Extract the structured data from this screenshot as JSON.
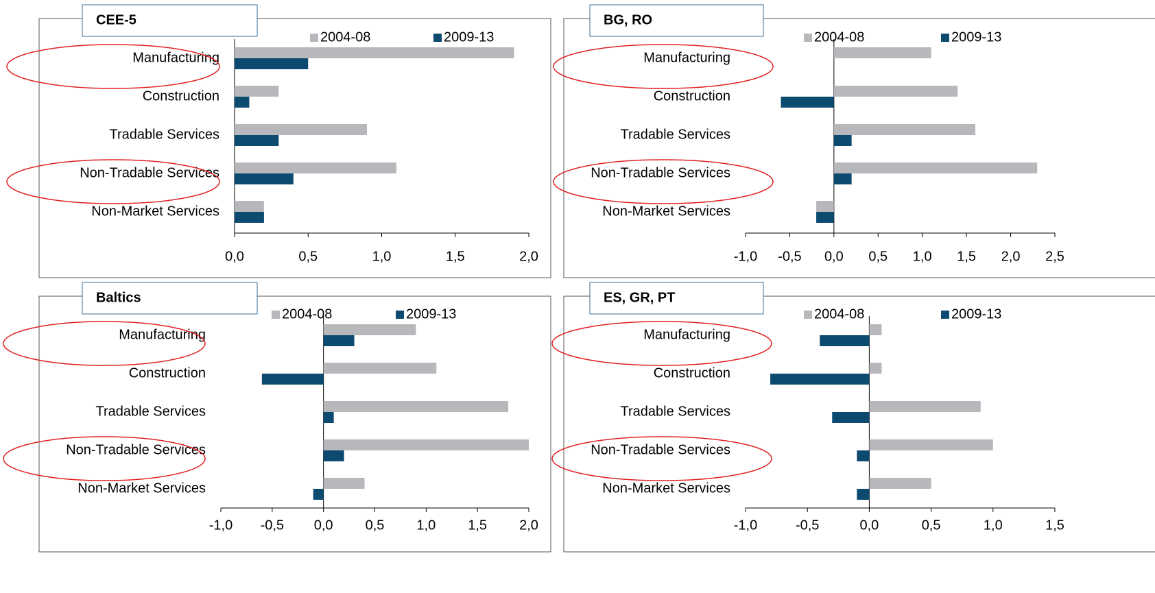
{
  "chart_data": [
    {
      "type": "bar",
      "orientation": "horizontal",
      "title": "CEE-5",
      "categories": [
        "Manufacturing",
        "Construction",
        "Tradable Services",
        "Non-Tradable Services",
        "Non-Market Services"
      ],
      "series": [
        {
          "name": "2004-08",
          "color": "#b7b8bc",
          "values": [
            1.9,
            0.3,
            0.9,
            1.1,
            0.2
          ]
        },
        {
          "name": "2009-13",
          "color": "#0d4a70",
          "values": [
            0.5,
            0.1,
            0.3,
            0.4,
            0.2
          ]
        }
      ],
      "xlim": [
        0,
        2
      ],
      "xticks": [
        {
          "value": 0,
          "label": "0,0"
        },
        {
          "value": 0.5,
          "label": "0,5"
        },
        {
          "value": 1,
          "label": "1,0"
        },
        {
          "value": 1.5,
          "label": "1,5"
        },
        {
          "value": 2,
          "label": "2,0"
        }
      ]
    },
    {
      "type": "bar",
      "orientation": "horizontal",
      "title": "BG, RO",
      "categories": [
        "Manufacturing",
        "Construction",
        "Tradable Services",
        "Non-Tradable Services",
        "Non-Market Services"
      ],
      "series": [
        {
          "name": "2004-08",
          "color": "#b7b8bc",
          "values": [
            1.1,
            1.4,
            1.6,
            2.3,
            -0.2
          ]
        },
        {
          "name": "2009-13",
          "color": "#0d4a70",
          "values": [
            0,
            -0.6,
            0.2,
            0.2,
            -0.2
          ]
        }
      ],
      "xlim": [
        -1,
        2.5
      ],
      "xticks": [
        {
          "value": -1,
          "label": "-1,0"
        },
        {
          "value": -0.5,
          "label": "-0,5"
        },
        {
          "value": 0,
          "label": "0,0"
        },
        {
          "value": 0.5,
          "label": "0,5"
        },
        {
          "value": 1,
          "label": "1,0"
        },
        {
          "value": 1.5,
          "label": "1,5"
        },
        {
          "value": 2,
          "label": "2,0"
        },
        {
          "value": 2.5,
          "label": "2,5"
        }
      ]
    },
    {
      "type": "bar",
      "orientation": "horizontal",
      "title": "Baltics",
      "categories": [
        "Manufacturing",
        "Construction",
        "Tradable Services",
        "Non-Tradable Services",
        "Non-Market Services"
      ],
      "series": [
        {
          "name": "2004-08",
          "color": "#b7b8bc",
          "values": [
            0.9,
            1.1,
            1.8,
            2.0,
            0.4
          ]
        },
        {
          "name": "2009-13",
          "color": "#0d4a70",
          "values": [
            0.3,
            -0.6,
            0.1,
            0.2,
            -0.1
          ]
        }
      ],
      "xlim": [
        -1,
        2
      ],
      "xticks": [
        {
          "value": -1,
          "label": "-1,0"
        },
        {
          "value": -0.5,
          "label": "-0,5"
        },
        {
          "value": 0,
          "label": "0,0"
        },
        {
          "value": 0.5,
          "label": "0,5"
        },
        {
          "value": 1,
          "label": "1,0"
        },
        {
          "value": 1.5,
          "label": "1,5"
        },
        {
          "value": 2,
          "label": "2,0"
        }
      ]
    },
    {
      "type": "bar",
      "orientation": "horizontal",
      "title": "ES, GR, PT",
      "categories": [
        "Manufacturing",
        "Construction",
        "Tradable Services",
        "Non-Tradable Services",
        "Non-Market Services"
      ],
      "series": [
        {
          "name": "2004-08",
          "color": "#b7b8bc",
          "values": [
            0.1,
            0.1,
            0.9,
            1.0,
            0.5
          ]
        },
        {
          "name": "2009-13",
          "color": "#0d4a70",
          "values": [
            -0.4,
            -0.8,
            -0.3,
            -0.1,
            -0.1
          ]
        }
      ],
      "xlim": [
        -1,
        1.5
      ],
      "xticks": [
        {
          "value": -1,
          "label": "-1,0"
        },
        {
          "value": -0.5,
          "label": "-0,5"
        },
        {
          "value": 0,
          "label": "0,0"
        },
        {
          "value": 0.5,
          "label": "0,5"
        },
        {
          "value": 1,
          "label": "1,0"
        },
        {
          "value": 1.5,
          "label": "1,5"
        }
      ]
    }
  ]
}
